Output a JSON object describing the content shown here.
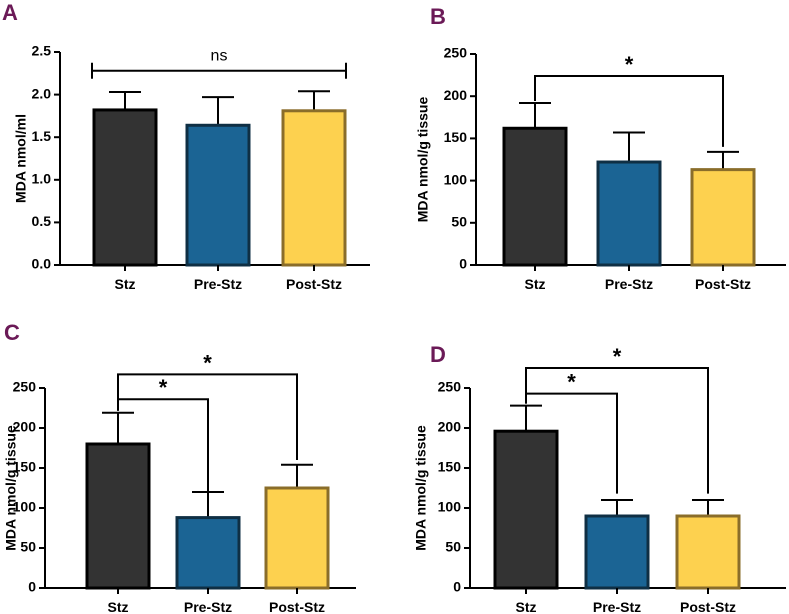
{
  "colors": {
    "panel_letter": "#6b1a57",
    "axis": "#000000",
    "bar_outlines": [
      "#000000",
      "#0f2f44",
      "#8a6d2a"
    ]
  },
  "chart_data": [
    {
      "type": "bar",
      "panel": "A",
      "title": "",
      "xlabel": "",
      "ylabel": "MDA nmol/ml",
      "categories": [
        "Stz",
        "Pre-Stz",
        "Post-Stz"
      ],
      "values": [
        1.82,
        1.64,
        1.81
      ],
      "errors": [
        0.21,
        0.33,
        0.23
      ],
      "colors": [
        "#333333",
        "#1b6494",
        "#fdd14f"
      ],
      "ylim": [
        0,
        2.5
      ],
      "yticks": [
        "0.0",
        "0.5",
        "1.0",
        "1.5",
        "2.0",
        "2.5"
      ],
      "significance": [
        {
          "from": 0,
          "to": 2,
          "label": "ns",
          "style": "ends",
          "level": 2.28
        }
      ]
    },
    {
      "type": "bar",
      "panel": "B",
      "title": "",
      "xlabel": "",
      "ylabel": "MDA nmol/g tissue",
      "categories": [
        "Stz",
        "Pre-Stz",
        "Post-Stz"
      ],
      "values": [
        162,
        122,
        113
      ],
      "errors": [
        30,
        35,
        21
      ],
      "colors": [
        "#333333",
        "#1b6494",
        "#fdd14f"
      ],
      "ylim": [
        0,
        250
      ],
      "yticks": [
        "0",
        "50",
        "100",
        "150",
        "200",
        "250"
      ],
      "significance": [
        {
          "from": 0,
          "to": 2,
          "label": "*",
          "style": "drop",
          "level": 224,
          "drop_to": 140
        }
      ]
    },
    {
      "type": "bar",
      "panel": "C",
      "title": "",
      "xlabel": "",
      "ylabel": "MDA nmol/g tissue",
      "categories": [
        "Stz",
        "Pre-Stz",
        "Post-Stz"
      ],
      "values": [
        180,
        88,
        125
      ],
      "errors": [
        39,
        32,
        29
      ],
      "colors": [
        "#333333",
        "#1b6494",
        "#fdd14f"
      ],
      "ylim": [
        0,
        250
      ],
      "yticks": [
        "0",
        "50",
        "100",
        "150",
        "200",
        "250"
      ],
      "significance": [
        {
          "from": 0,
          "to": 1,
          "label": "*",
          "style": "drop",
          "level": 236,
          "drop_to": 94
        },
        {
          "from": 0,
          "to": 2,
          "label": "*",
          "style": "drop",
          "level": 267,
          "drop_to": 160
        }
      ]
    },
    {
      "type": "bar",
      "panel": "D",
      "title": "",
      "xlabel": "",
      "ylabel": "MDA nmol/g tissue",
      "categories": [
        "Stz",
        "Pre-Stz",
        "Post-Stz"
      ],
      "values": [
        196,
        90,
        90
      ],
      "errors": [
        32,
        20,
        20
      ],
      "colors": [
        "#333333",
        "#1b6494",
        "#fdd14f"
      ],
      "ylim": [
        0,
        250
      ],
      "yticks": [
        "0",
        "50",
        "100",
        "150",
        "200",
        "250"
      ],
      "significance": [
        {
          "from": 0,
          "to": 1,
          "label": "*",
          "style": "drop",
          "level": 243,
          "drop_to": 118
        },
        {
          "from": 0,
          "to": 2,
          "label": "*",
          "style": "drop",
          "level": 275,
          "drop_to": 118
        }
      ]
    }
  ]
}
